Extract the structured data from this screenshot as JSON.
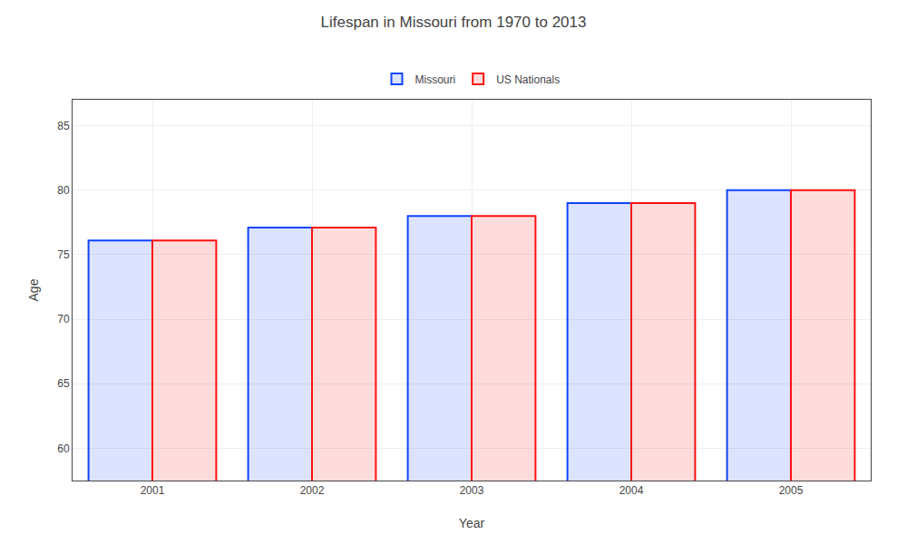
{
  "chart_data": {
    "type": "bar",
    "title": "Lifespan in Missouri from 1970 to 2013",
    "x_label": "Year",
    "y_label": "Age",
    "categories": [
      "2001",
      "2002",
      "2003",
      "2004",
      "2005"
    ],
    "series": [
      {
        "name": "Missouri",
        "color": "#1144ff",
        "values": [
          76.1,
          77.1,
          78.0,
          79.0,
          80.0
        ]
      },
      {
        "name": "US Nationals",
        "color": "#ff1111",
        "values": [
          76.1,
          77.1,
          78.0,
          79.0,
          80.0
        ]
      }
    ],
    "ylim": [
      57.5,
      87
    ],
    "yticks": [
      60,
      65,
      70,
      75,
      80,
      85
    ],
    "grid": true,
    "legend": "top"
  }
}
